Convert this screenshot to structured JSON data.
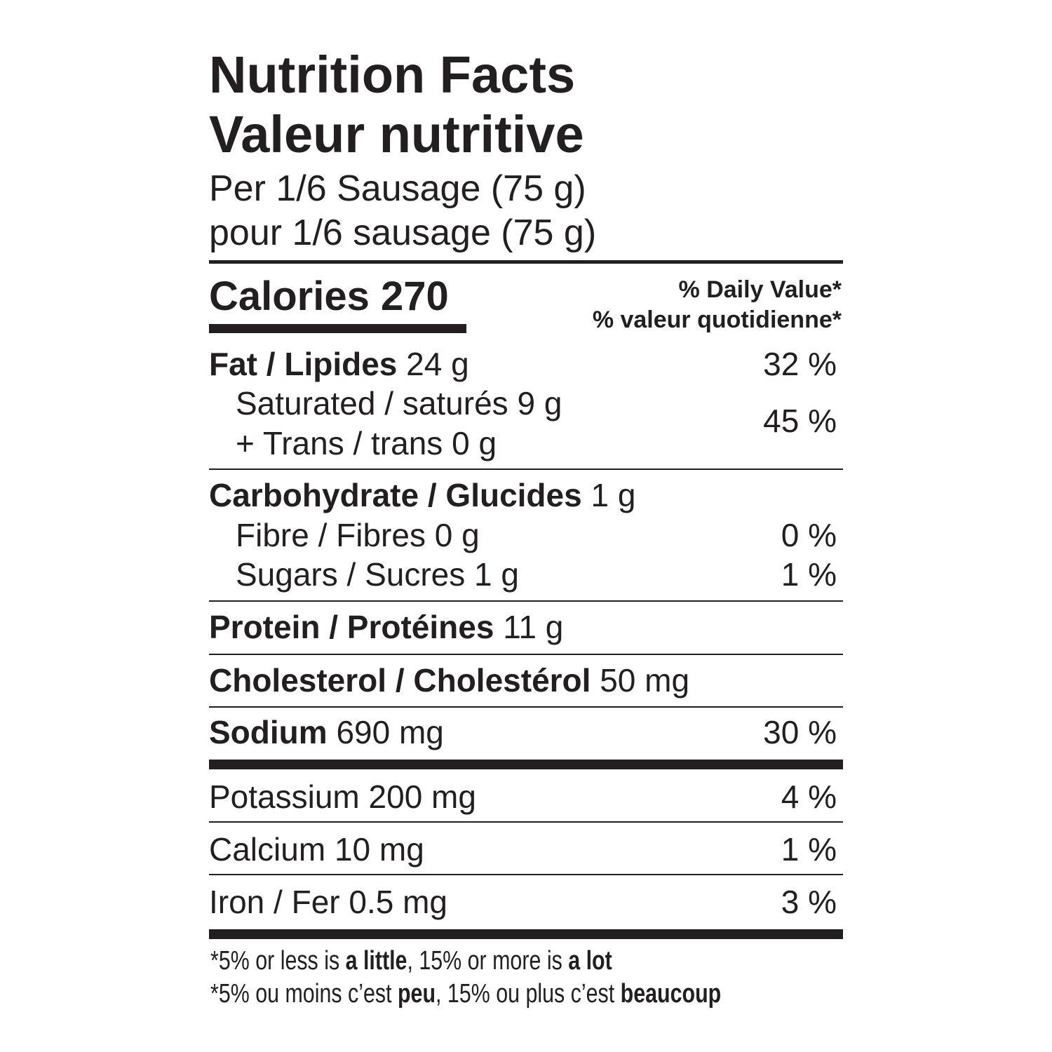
{
  "header": {
    "title_en": "Nutrition Facts",
    "title_fr": "Valeur nutritive",
    "serving_en": "Per 1/6 Sausage (75 g)",
    "serving_fr": "pour 1/6 sausage (75 g)"
  },
  "calories": {
    "label": "Calories",
    "value": "270"
  },
  "daily_value": {
    "en": "% Daily Value*",
    "fr": "% valeur quotidienne*"
  },
  "nutrients": {
    "fat": {
      "label": "Fat / Lipides",
      "amount": "24 g",
      "dv": "32 %"
    },
    "saturated": {
      "label": "Saturated / saturés",
      "amount": "9 g"
    },
    "trans": {
      "label": "+ Trans / trans",
      "amount": "0 g"
    },
    "sat_trans_dv": "45 %",
    "carbohydrate": {
      "label": "Carbohydrate / Glucides",
      "amount": "1 g"
    },
    "fibre": {
      "label": "Fibre / Fibres",
      "amount": "0 g",
      "dv": "0 %"
    },
    "sugars": {
      "label": "Sugars / Sucres",
      "amount": "1 g",
      "dv": "1 %"
    },
    "protein": {
      "label": "Protein / Protéines",
      "amount": "11 g"
    },
    "cholesterol": {
      "label": "Cholesterol / Cholestérol",
      "amount": "50 mg"
    },
    "sodium": {
      "label": "Sodium",
      "amount": "690 mg",
      "dv": "30 %"
    },
    "potassium": {
      "label": "Potassium",
      "amount": "200 mg",
      "dv": "4 %"
    },
    "calcium": {
      "label": "Calcium",
      "amount": "10 mg",
      "dv": "1 %"
    },
    "iron": {
      "label": "Iron / Fer",
      "amount": "0.5 mg",
      "dv": "3 %"
    }
  },
  "footnote": {
    "en": {
      "a": "*5% or less is ",
      "b": "a little",
      "c": ", 15% or more is ",
      "d": "a lot"
    },
    "fr": {
      "a": "*5% ou moins c’est ",
      "b": "peu",
      "c": ", 15% ou plus c’est ",
      "d": "beaucoup"
    }
  },
  "colors": {
    "ink": "#231f20",
    "background": "#ffffff"
  }
}
